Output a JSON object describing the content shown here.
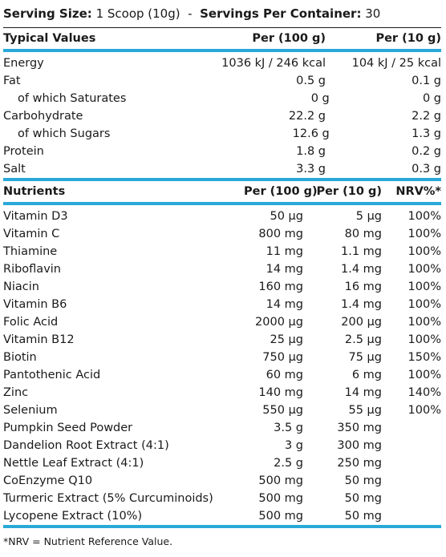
{
  "serving": {
    "size_label": "Serving Size:",
    "size_value": "1 Scoop (10g)",
    "separator": "-",
    "container_label": "Servings Per Container:",
    "container_value": "30"
  },
  "typical": {
    "headers": [
      "Typical Values",
      "Per (100 g)",
      "Per (10 g)"
    ],
    "rows": [
      {
        "name": "Energy",
        "per100": "1036 kJ / 246 kcal",
        "per10": "104 kJ / 25 kcal",
        "indent": false
      },
      {
        "name": "Fat",
        "per100": "0.5 g",
        "per10": "0.1 g",
        "indent": false
      },
      {
        "name": "of which Saturates",
        "per100": "0 g",
        "per10": "0 g",
        "indent": true
      },
      {
        "name": "Carbohydrate",
        "per100": "22.2 g",
        "per10": "2.2 g",
        "indent": false
      },
      {
        "name": "of which Sugars",
        "per100": "12.6 g",
        "per10": "1.3 g",
        "indent": true
      },
      {
        "name": "Protein",
        "per100": "1.8 g",
        "per10": "0.2 g",
        "indent": false
      },
      {
        "name": "Salt",
        "per100": "3.3 g",
        "per10": "0.3 g",
        "indent": false
      }
    ]
  },
  "nutrients": {
    "headers": [
      "Nutrients",
      "Per (100 g)",
      "Per (10 g)",
      "NRV%*"
    ],
    "rows": [
      {
        "name": "Vitamin D3",
        "per100": "50 μg",
        "per10": "5 μg",
        "nrv": "100%"
      },
      {
        "name": "Vitamin C",
        "per100": "800 mg",
        "per10": "80 mg",
        "nrv": "100%"
      },
      {
        "name": "Thiamine",
        "per100": "11 mg",
        "per10": "1.1 mg",
        "nrv": "100%"
      },
      {
        "name": "Riboflavin",
        "per100": "14 mg",
        "per10": "1.4 mg",
        "nrv": "100%"
      },
      {
        "name": "Niacin",
        "per100": "160 mg",
        "per10": "16 mg",
        "nrv": "100%"
      },
      {
        "name": "Vitamin B6",
        "per100": "14 mg",
        "per10": "1.4 mg",
        "nrv": "100%"
      },
      {
        "name": "Folic Acid",
        "per100": "2000 μg",
        "per10": "200 μg",
        "nrv": "100%"
      },
      {
        "name": "Vitamin B12",
        "per100": "25 μg",
        "per10": "2.5 μg",
        "nrv": "100%"
      },
      {
        "name": "Biotin",
        "per100": "750 μg",
        "per10": "75 μg",
        "nrv": "150%"
      },
      {
        "name": "Pantothenic Acid",
        "per100": "60 mg",
        "per10": "6 mg",
        "nrv": "100%"
      },
      {
        "name": "Zinc",
        "per100": "140 mg",
        "per10": "14 mg",
        "nrv": "140%"
      },
      {
        "name": "Selenium",
        "per100": "550 μg",
        "per10": "55 μg",
        "nrv": "100%"
      },
      {
        "name": "Pumpkin Seed Powder",
        "per100": "3.5 g",
        "per10": "350 mg",
        "nrv": ""
      },
      {
        "name": "Dandelion Root Extract (4:1)",
        "per100": "3 g",
        "per10": "300 mg",
        "nrv": ""
      },
      {
        "name": "Nettle Leaf Extract (4:1)",
        "per100": "2.5 g",
        "per10": "250 mg",
        "nrv": ""
      },
      {
        "name": "CoEnzyme Q10",
        "per100": "500 mg",
        "per10": "50 mg",
        "nrv": ""
      },
      {
        "name": "Turmeric Extract (5% Curcuminoids)",
        "per100": "500 mg",
        "per10": "50 mg",
        "nrv": ""
      },
      {
        "name": "Lycopene Extract (10%)",
        "per100": "500 mg",
        "per10": "50 mg",
        "nrv": ""
      }
    ]
  },
  "footnote": "*NRV = Nutrient Reference Value.",
  "colors": {
    "accent": "#29a8d9",
    "text": "#1a1a1a"
  }
}
